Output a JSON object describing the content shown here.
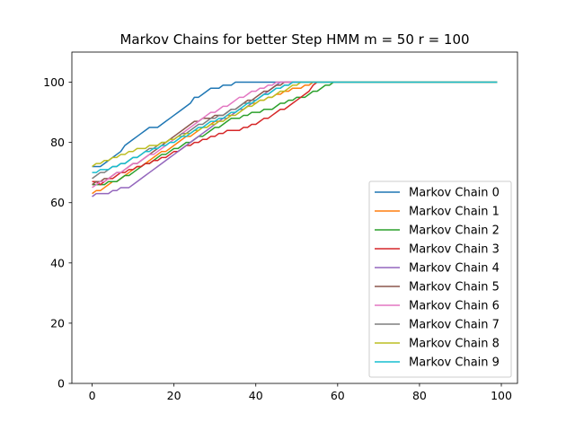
{
  "chart_data": {
    "type": "line",
    "title": "Markov Chains for better Step HMM m = 50 r = 100",
    "xlabel": "",
    "ylabel": "",
    "xlim": [
      -4.95,
      103.95
    ],
    "ylim": [
      0,
      110
    ],
    "x_ticks": [
      0,
      20,
      40,
      60,
      80,
      100
    ],
    "y_ticks": [
      0,
      20,
      40,
      60,
      80,
      100
    ],
    "grid": false,
    "legend_position": "lower right",
    "x_domain": [
      0,
      99
    ],
    "series": [
      {
        "name": "Markov Chain 0",
        "color": "#1f77b4",
        "start": 72,
        "plateau_at": 35,
        "plateau_value": 100,
        "points": [
          [
            0,
            72
          ],
          [
            2,
            72
          ],
          [
            3,
            73
          ],
          [
            13,
            84
          ],
          [
            14,
            85
          ],
          [
            16,
            85
          ],
          [
            24,
            93
          ],
          [
            25,
            95
          ],
          [
            26,
            95
          ],
          [
            28,
            97
          ],
          [
            29,
            98
          ],
          [
            31,
            98
          ],
          [
            32,
            99
          ],
          [
            34,
            99
          ],
          [
            35,
            100
          ]
        ]
      },
      {
        "name": "Markov Chain 1",
        "color": "#ff7f0e",
        "start": 63,
        "plateau_at": 55,
        "plateau_value": 100,
        "points": [
          [
            0,
            63
          ],
          [
            2,
            64
          ],
          [
            8,
            69
          ],
          [
            14,
            74
          ],
          [
            20,
            79
          ],
          [
            26,
            84
          ],
          [
            32,
            88
          ],
          [
            38,
            92
          ],
          [
            44,
            95
          ],
          [
            50,
            98
          ],
          [
            55,
            100
          ]
        ]
      },
      {
        "name": "Markov Chain 2",
        "color": "#2ca02c",
        "start": 66,
        "plateau_at": 59,
        "plateau_value": 100,
        "points": [
          [
            0,
            66
          ],
          [
            3,
            66
          ],
          [
            4,
            67
          ],
          [
            6,
            67
          ],
          [
            10,
            70
          ],
          [
            16,
            75
          ],
          [
            22,
            79
          ],
          [
            28,
            83
          ],
          [
            32,
            86
          ],
          [
            34,
            88
          ],
          [
            36,
            88
          ],
          [
            40,
            90
          ],
          [
            44,
            91
          ],
          [
            48,
            94
          ],
          [
            52,
            95
          ],
          [
            56,
            98
          ],
          [
            59,
            100
          ]
        ]
      },
      {
        "name": "Markov Chain 3",
        "color": "#d62728",
        "start": 67,
        "plateau_at": 55,
        "plateau_value": 100,
        "points": [
          [
            0,
            67
          ],
          [
            2,
            66
          ],
          [
            6,
            69
          ],
          [
            10,
            71
          ],
          [
            14,
            73
          ],
          [
            18,
            75
          ],
          [
            22,
            78
          ],
          [
            26,
            80
          ],
          [
            30,
            82
          ],
          [
            34,
            84
          ],
          [
            36,
            84
          ],
          [
            40,
            86
          ],
          [
            44,
            89
          ],
          [
            48,
            92
          ],
          [
            52,
            96
          ],
          [
            55,
            100
          ]
        ]
      },
      {
        "name": "Markov Chain 4",
        "color": "#9467bd",
        "start": 62,
        "plateau_at": 46,
        "plateau_value": 100,
        "points": [
          [
            0,
            62
          ],
          [
            2,
            63
          ],
          [
            4,
            63
          ],
          [
            5,
            64
          ],
          [
            6,
            64
          ],
          [
            7,
            65
          ],
          [
            9,
            65
          ],
          [
            14,
            70
          ],
          [
            18,
            74
          ],
          [
            22,
            78
          ],
          [
            26,
            82
          ],
          [
            30,
            86
          ],
          [
            34,
            89
          ],
          [
            38,
            92
          ],
          [
            42,
            96
          ],
          [
            46,
            100
          ]
        ]
      },
      {
        "name": "Markov Chain 5",
        "color": "#8c564b",
        "start": 66,
        "plateau_at": 48,
        "plateau_value": 100,
        "points": [
          [
            0,
            66
          ],
          [
            4,
            68
          ],
          [
            8,
            71
          ],
          [
            12,
            74
          ],
          [
            16,
            78
          ],
          [
            20,
            82
          ],
          [
            24,
            86
          ],
          [
            28,
            88
          ],
          [
            32,
            89
          ],
          [
            36,
            92
          ],
          [
            40,
            95
          ],
          [
            44,
            98
          ],
          [
            48,
            100
          ]
        ]
      },
      {
        "name": "Markov Chain 6",
        "color": "#e377c2",
        "start": 65,
        "plateau_at": 46,
        "plateau_value": 100,
        "points": [
          [
            0,
            65
          ],
          [
            4,
            68
          ],
          [
            8,
            71
          ],
          [
            12,
            74
          ],
          [
            16,
            77
          ],
          [
            20,
            81
          ],
          [
            24,
            85
          ],
          [
            28,
            89
          ],
          [
            31,
            91
          ],
          [
            34,
            93
          ],
          [
            38,
            96
          ],
          [
            42,
            98
          ],
          [
            46,
            100
          ]
        ]
      },
      {
        "name": "Markov Chain 7",
        "color": "#7f7f7f",
        "start": 68,
        "plateau_at": 49,
        "plateau_value": 100,
        "points": [
          [
            0,
            68
          ],
          [
            4,
            71
          ],
          [
            8,
            73
          ],
          [
            12,
            76
          ],
          [
            16,
            79
          ],
          [
            20,
            81
          ],
          [
            24,
            84
          ],
          [
            28,
            87
          ],
          [
            32,
            89
          ],
          [
            36,
            92
          ],
          [
            40,
            94
          ],
          [
            44,
            97
          ],
          [
            49,
            100
          ]
        ]
      },
      {
        "name": "Markov Chain 8",
        "color": "#bcbd22",
        "start": 72,
        "plateau_at": 52,
        "plateau_value": 100,
        "points": [
          [
            0,
            72
          ],
          [
            4,
            74
          ],
          [
            8,
            76
          ],
          [
            12,
            78
          ],
          [
            16,
            79
          ],
          [
            20,
            81
          ],
          [
            24,
            83
          ],
          [
            28,
            85
          ],
          [
            32,
            87
          ],
          [
            36,
            90
          ],
          [
            40,
            93
          ],
          [
            44,
            95
          ],
          [
            48,
            98
          ],
          [
            52,
            100
          ]
        ]
      },
      {
        "name": "Markov Chain 9",
        "color": "#17becf",
        "start": 70,
        "plateau_at": 49,
        "plateau_value": 100,
        "points": [
          [
            0,
            70
          ],
          [
            4,
            71
          ],
          [
            8,
            73
          ],
          [
            12,
            76
          ],
          [
            16,
            78
          ],
          [
            20,
            80
          ],
          [
            24,
            83
          ],
          [
            28,
            86
          ],
          [
            32,
            88
          ],
          [
            36,
            91
          ],
          [
            40,
            94
          ],
          [
            44,
            97
          ],
          [
            49,
            100
          ]
        ]
      }
    ]
  }
}
